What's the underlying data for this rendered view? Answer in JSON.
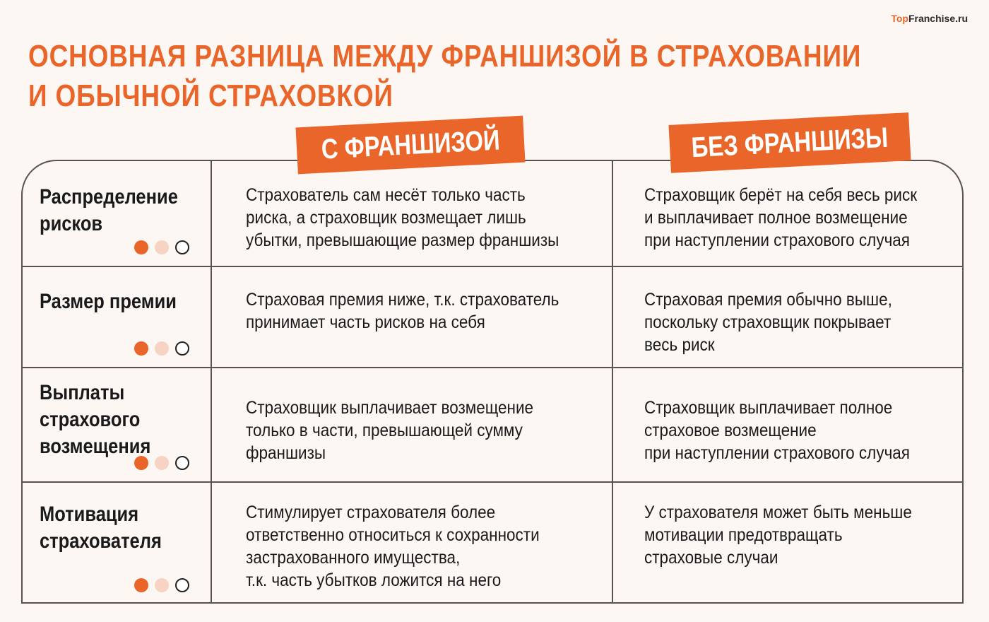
{
  "logo": {
    "part1": "Top",
    "part2": "Franchise.ru"
  },
  "title": {
    "line1": "Основная разница между франшизой в страховании",
    "line2": "и обычной страховкой"
  },
  "headers": {
    "with": "С франшизой",
    "without": "Без франшизы"
  },
  "colors": {
    "accent": "#e9652a",
    "accent_light": "#f7d3c4",
    "background": "#fdf7f4",
    "border": "#5a5250"
  },
  "rows": [
    {
      "label": [
        "Распределение",
        "рисков"
      ],
      "with": [
        "Страхователь сам несёт только часть",
        "риска, а страховщик возмещает лишь",
        "убытки, превышающие размер франшизы"
      ],
      "without": [
        "Страховщик берёт на себя весь риск",
        "и выплачивает полное возмещение",
        "при наступлении страхового случая"
      ]
    },
    {
      "label": [
        "Размер премии"
      ],
      "with": [
        "Страховая премия ниже, т.к. страхователь",
        "принимает часть рисков на себя"
      ],
      "without": [
        "Страховая премия обычно выше,",
        "поскольку страховщик покрывает",
        "весь риск"
      ]
    },
    {
      "label": [
        "Выплаты",
        "страхового",
        "возмещения"
      ],
      "with": [
        "Страховщик выплачивает возмещение",
        "только в части, превышающей сумму",
        "франшизы"
      ],
      "without": [
        "Страховщик выплачивает полное",
        "страховое возмещение",
        "при наступлении страхового случая"
      ]
    },
    {
      "label": [
        "Мотивация",
        "страхователя"
      ],
      "with": [
        "Стимулирует страхователя более",
        "ответственно относиться к сохранности",
        "застрахованного имущества,",
        "т.к. часть убытков ложится на него"
      ],
      "without": [
        "У страхователя может быть меньше",
        "мотивации предотвращать",
        "страховые случаи"
      ]
    }
  ]
}
